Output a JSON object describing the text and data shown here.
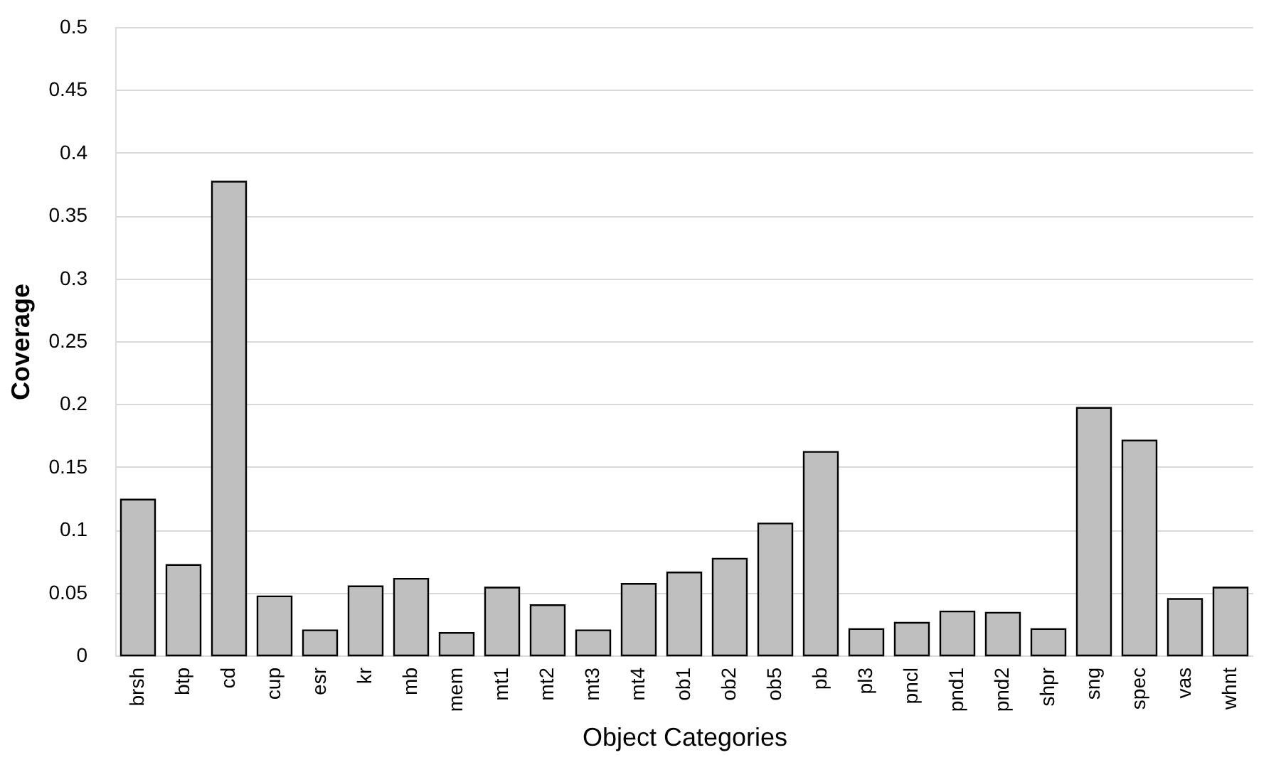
{
  "chart_data": {
    "type": "bar",
    "xlabel": "Object Categories",
    "ylabel": "Coverage",
    "categories": [
      "brsh",
      "btp",
      "cd",
      "cup",
      "esr",
      "kr",
      "mb",
      "mem",
      "mt1",
      "mt2",
      "mt3",
      "mt4",
      "ob1",
      "ob2",
      "ob5",
      "pb",
      "pl3",
      "pncl",
      "pnd1",
      "pnd2",
      "shpr",
      "sng",
      "spec",
      "vas",
      "whnt"
    ],
    "values": [
      0.124,
      0.072,
      0.377,
      0.047,
      0.02,
      0.055,
      0.061,
      0.018,
      0.054,
      0.04,
      0.02,
      0.057,
      0.066,
      0.077,
      0.105,
      0.162,
      0.021,
      0.026,
      0.035,
      0.034,
      0.021,
      0.197,
      0.171,
      0.045,
      0.054
    ],
    "color": "#bfbfbf",
    "ylim": [
      0,
      0.5
    ],
    "yticks": [
      0,
      0.05,
      0.1,
      0.15,
      0.2,
      0.25,
      0.3,
      0.35,
      0.4,
      0.45,
      0.5
    ],
    "grid": "y"
  }
}
